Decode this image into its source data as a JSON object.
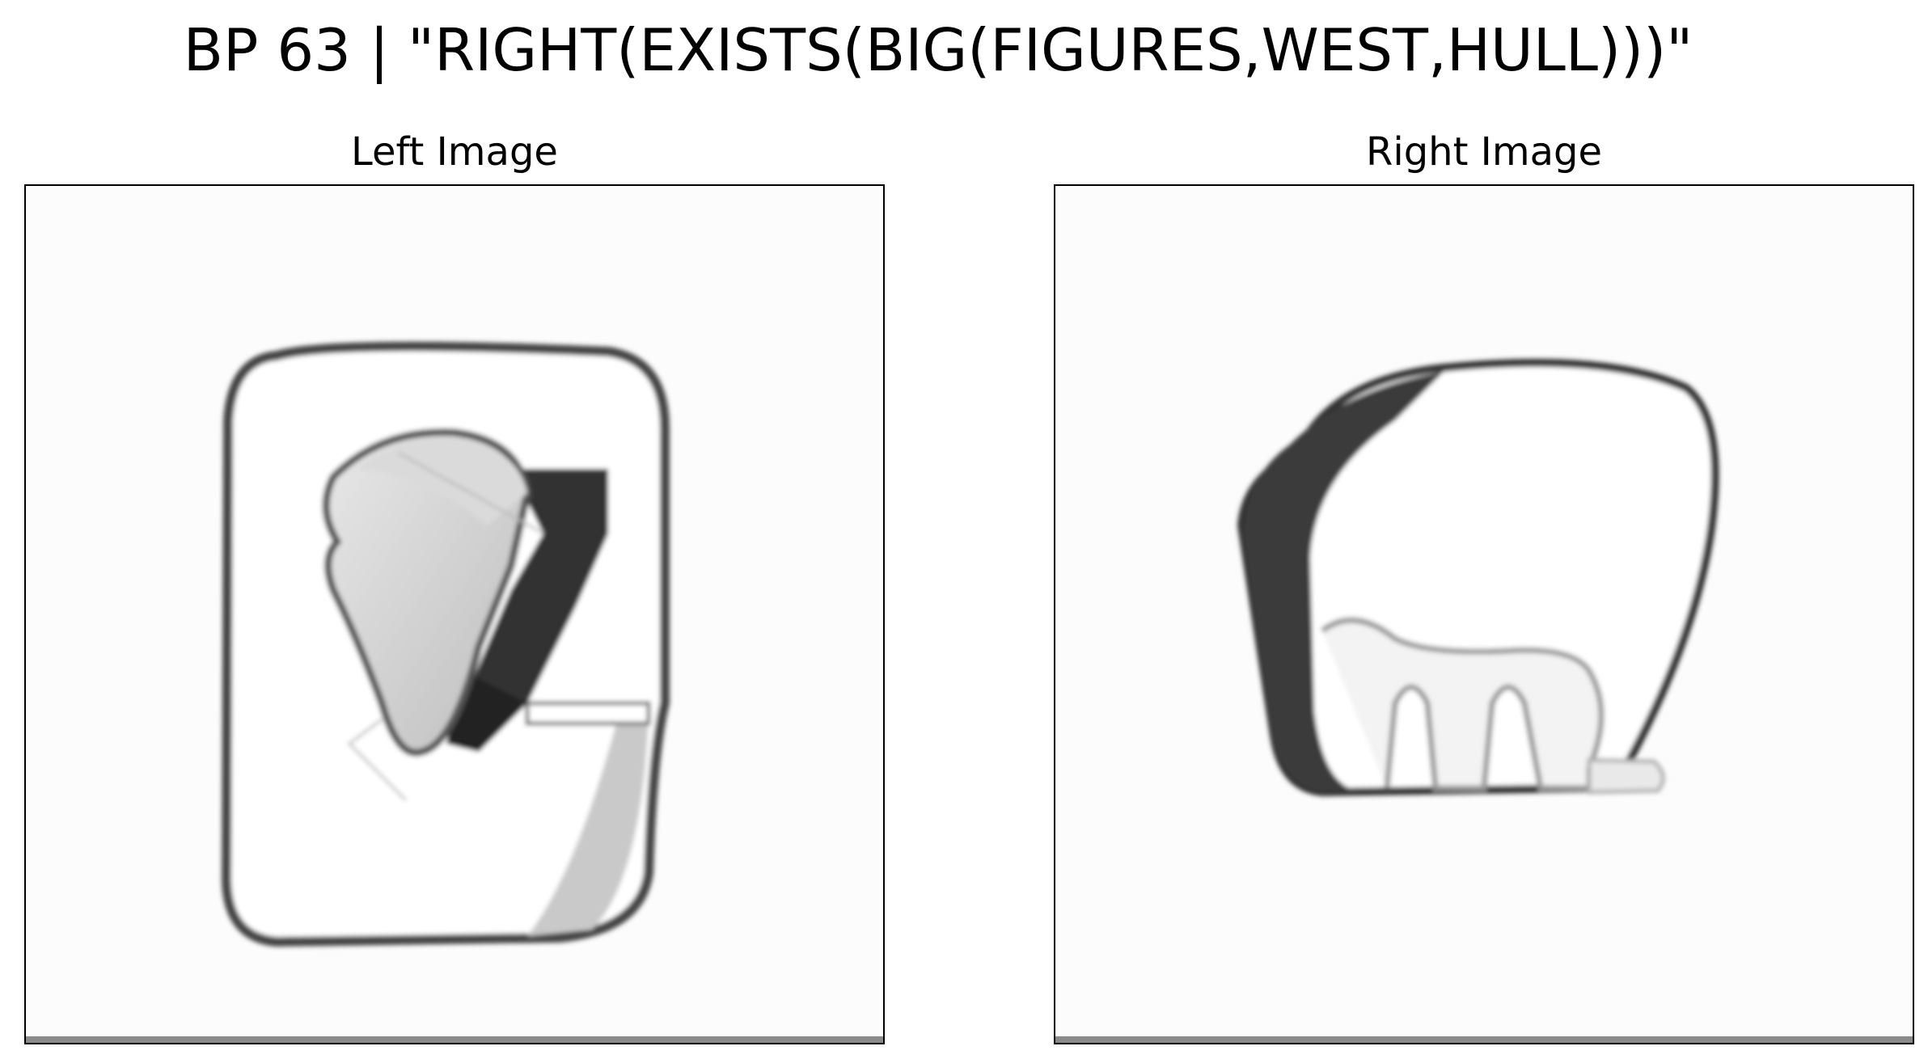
{
  "figure": {
    "title": "BP 63 | \"RIGHT(EXISTS(BIG(FIGURES,WEST,HULL)))\""
  },
  "panels": [
    {
      "title": "Left Image"
    },
    {
      "title": "Right Image"
    }
  ]
}
